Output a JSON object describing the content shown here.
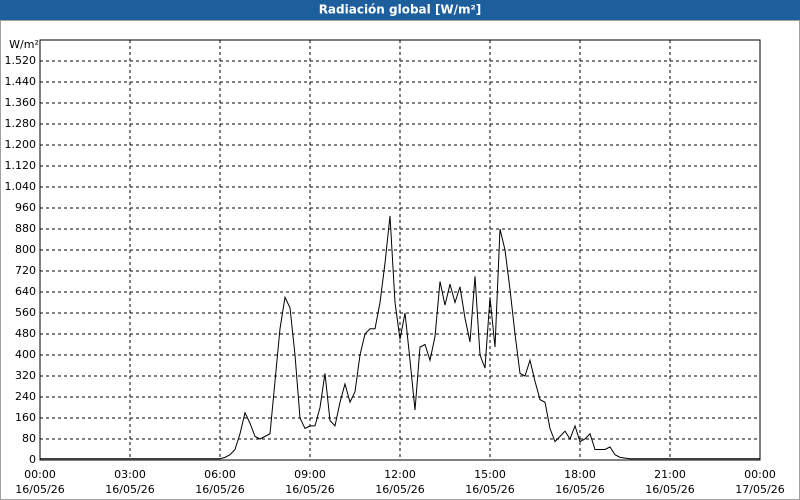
{
  "chart_data": {
    "type": "line",
    "title": "Radiación global [W/m²]",
    "y_label": "W/m²",
    "x": [
      0,
      360,
      370,
      380,
      390,
      400,
      410,
      420,
      430,
      440,
      450,
      460,
      470,
      480,
      490,
      500,
      510,
      520,
      530,
      540,
      550,
      560,
      570,
      580,
      590,
      600,
      610,
      620,
      630,
      640,
      650,
      660,
      670,
      680,
      690,
      700,
      710,
      720,
      730,
      740,
      750,
      760,
      770,
      780,
      790,
      800,
      810,
      820,
      830,
      840,
      850,
      860,
      870,
      880,
      890,
      900,
      910,
      920,
      930,
      940,
      950,
      960,
      970,
      980,
      990,
      1000,
      1010,
      1020,
      1030,
      1040,
      1050,
      1060,
      1070,
      1080,
      1090,
      1100,
      1110,
      1120,
      1130,
      1140,
      1150,
      1160,
      1180,
      1440
    ],
    "series": [
      {
        "color": "#000000",
        "values": [
          5,
          5,
          10,
          20,
          40,
          100,
          180,
          140,
          90,
          80,
          90,
          100,
          300,
          500,
          620,
          580,
          400,
          160,
          120,
          130,
          130,
          200,
          330,
          150,
          130,
          220,
          290,
          220,
          260,
          400,
          480,
          500,
          500,
          600,
          750,
          930,
          600,
          460,
          560,
          380,
          190,
          430,
          440,
          380,
          470,
          680,
          590,
          670,
          600,
          660,
          540,
          450,
          700,
          400,
          350,
          620,
          430,
          880,
          800,
          650,
          480,
          330,
          320,
          380,
          300,
          230,
          220,
          120,
          70,
          90,
          110,
          80,
          130,
          70,
          80,
          100,
          40,
          40,
          40,
          50,
          20,
          10,
          5,
          5
        ]
      }
    ],
    "xlim": [
      0,
      1440
    ],
    "xticks": [
      {
        "value": 0,
        "label": "00:00"
      },
      {
        "value": 180,
        "label": "03:00"
      },
      {
        "value": 360,
        "label": "06:00"
      },
      {
        "value": 540,
        "label": "09:00"
      },
      {
        "value": 720,
        "label": "12:00"
      },
      {
        "value": 900,
        "label": "15:00"
      },
      {
        "value": 1080,
        "label": "18:00"
      },
      {
        "value": 1260,
        "label": "21:00"
      },
      {
        "value": 1440,
        "label": "00:00"
      }
    ],
    "xtick_dates": [
      "16/05/26",
      "16/05/26",
      "16/05/26",
      "16/05/26",
      "16/05/26",
      "16/05/26",
      "16/05/26",
      "16/05/26",
      "17/05/26"
    ],
    "ylim": [
      0,
      1600
    ],
    "yticks": [
      0,
      80,
      160,
      240,
      320,
      400,
      480,
      560,
      640,
      720,
      800,
      880,
      960,
      {
        "value": 1040,
        "label": "1.040"
      },
      {
        "value": 1120,
        "label": "1.120"
      },
      {
        "value": 1200,
        "label": "1.200"
      },
      {
        "value": 1280,
        "label": "1.280"
      },
      {
        "value": 1360,
        "label": "1.360"
      },
      {
        "value": 1440,
        "label": "1.440"
      },
      {
        "value": 1520,
        "label": "1.520"
      }
    ],
    "grid": true
  }
}
